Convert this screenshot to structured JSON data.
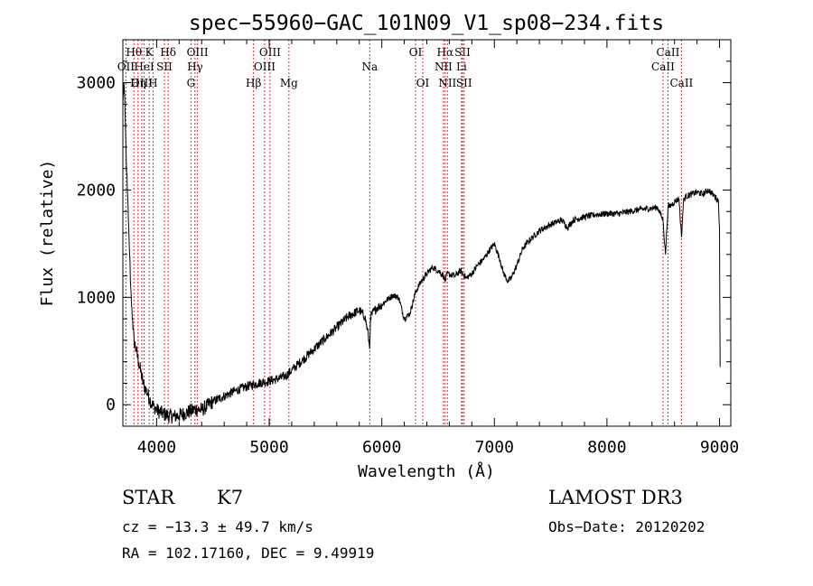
{
  "chart_data": {
    "type": "line",
    "title": "spec−55960−GAC_101N09_V1_sp08−234.fits",
    "xlabel": "Wavelength (Å)",
    "ylabel": "Flux (relative)",
    "xlim": [
      3700,
      9100
    ],
    "ylim": [
      -200,
      3400
    ],
    "xticks": [
      4000,
      5000,
      6000,
      7000,
      8000,
      9000
    ],
    "xtick_labels": [
      "4000",
      "5000",
      "6000",
      "7000",
      "8000",
      "9000"
    ],
    "yticks": [
      0,
      1000,
      2000,
      3000
    ],
    "ytick_labels": [
      "0",
      "1000",
      "2000",
      "3000"
    ],
    "grid": false,
    "series": [
      {
        "name": "flux",
        "x": [
          3700,
          3710,
          3720,
          3730,
          3740,
          3750,
          3760,
          3770,
          3780,
          3790,
          3800,
          3820,
          3840,
          3860,
          3880,
          3900,
          3920,
          3940,
          3960,
          3980,
          4000,
          4050,
          4100,
          4150,
          4200,
          4250,
          4300,
          4350,
          4400,
          4500,
          4600,
          4700,
          4800,
          4900,
          5000,
          5100,
          5150,
          5200,
          5300,
          5400,
          5500,
          5600,
          5700,
          5800,
          5850,
          5880,
          5893,
          5900,
          5950,
          6000,
          6050,
          6100,
          6150,
          6200,
          6250,
          6300,
          6350,
          6400,
          6450,
          6500,
          6550,
          6563,
          6580,
          6650,
          6700,
          6750,
          6800,
          6850,
          6900,
          6950,
          7000,
          7050,
          7080,
          7120,
          7150,
          7200,
          7250,
          7300,
          7400,
          7500,
          7600,
          7650,
          7700,
          7800,
          7900,
          8000,
          8100,
          8200,
          8300,
          8400,
          8450,
          8498,
          8520,
          8542,
          8560,
          8600,
          8640,
          8662,
          8680,
          8700,
          8750,
          8800,
          8850,
          8900,
          8950,
          8990,
          9000,
          9005
        ],
        "y": [
          2800,
          3000,
          2700,
          2300,
          2000,
          1700,
          1400,
          1100,
          900,
          700,
          600,
          500,
          400,
          300,
          200,
          150,
          100,
          50,
          0,
          -20,
          -50,
          -80,
          -100,
          -110,
          -100,
          -80,
          -60,
          -40,
          -50,
          30,
          80,
          130,
          170,
          200,
          220,
          250,
          270,
          320,
          420,
          520,
          620,
          720,
          820,
          880,
          820,
          650,
          520,
          820,
          900,
          930,
          980,
          1020,
          1000,
          800,
          850,
          1050,
          1150,
          1220,
          1280,
          1250,
          1200,
          1150,
          1220,
          1200,
          1250,
          1180,
          1220,
          1300,
          1350,
          1430,
          1500,
          1350,
          1230,
          1150,
          1180,
          1300,
          1450,
          1520,
          1620,
          1680,
          1720,
          1650,
          1720,
          1750,
          1770,
          1780,
          1780,
          1800,
          1820,
          1830,
          1840,
          1720,
          1400,
          1840,
          1850,
          1890,
          1920,
          1560,
          1900,
          1940,
          1960,
          1980,
          1960,
          2000,
          1950,
          1900,
          1650,
          350
        ]
      }
    ],
    "line_markers": [
      {
        "label": "Hθ",
        "x": 3798,
        "row": 1
      },
      {
        "label": "OII",
        "x": 3727,
        "row": 2
      },
      {
        "label": "OIII",
        "x": 3869,
        "row": 3
      },
      {
        "label": "K",
        "x": 3934,
        "row": 1
      },
      {
        "label": "HeI",
        "x": 3889,
        "row": 2
      },
      {
        "label": "Hη",
        "x": 3835,
        "row": 3
      },
      {
        "label": "SII",
        "x": 4069,
        "row": 2
      },
      {
        "label": "H",
        "x": 3968,
        "row": 3
      },
      {
        "label": "Hδ",
        "x": 4102,
        "row": 1
      },
      {
        "label": "OIII",
        "x": 4363,
        "row": 1
      },
      {
        "label": "Hγ",
        "x": 4341,
        "row": 2
      },
      {
        "label": "G",
        "x": 4305,
        "row": 3
      },
      {
        "label": "Hβ",
        "x": 4861,
        "row": 3
      },
      {
        "label": "OIII",
        "x": 5007,
        "row": 1
      },
      {
        "label": "OIII",
        "x": 4959,
        "row": 2
      },
      {
        "label": "Mg",
        "x": 5175,
        "row": 3
      },
      {
        "label": "Na",
        "x": 5893,
        "row": 2
      },
      {
        "label": "OI",
        "x": 6300,
        "row": 1
      },
      {
        "label": "OI",
        "x": 6364,
        "row": 3
      },
      {
        "label": "Hα",
        "x": 6563,
        "row": 1
      },
      {
        "label": "NII",
        "x": 6548,
        "row": 2
      },
      {
        "label": "NII",
        "x": 6583,
        "row": 3
      },
      {
        "label": "SII",
        "x": 6717,
        "row": 1
      },
      {
        "label": "Li",
        "x": 6708,
        "row": 2
      },
      {
        "label": "SII",
        "x": 6731,
        "row": 3
      },
      {
        "label": "CaII",
        "x": 8542,
        "row": 1
      },
      {
        "label": "CaII",
        "x": 8498,
        "row": 2
      },
      {
        "label": "CaII",
        "x": 8662,
        "row": 3
      }
    ]
  },
  "footer": {
    "class_label": "STAR",
    "subclass": "K7",
    "survey": "LAMOST DR3",
    "redshift": "cz = −13.3 ± 49.7 km/s",
    "obs_date": "Obs−Date: 20120202",
    "coords": "RA = 102.17160, DEC =    9.49919"
  },
  "colors": {
    "spectrum": "#000000",
    "marker_line": "#cc3333",
    "axis": "#000000",
    "background": "#ffffff"
  }
}
